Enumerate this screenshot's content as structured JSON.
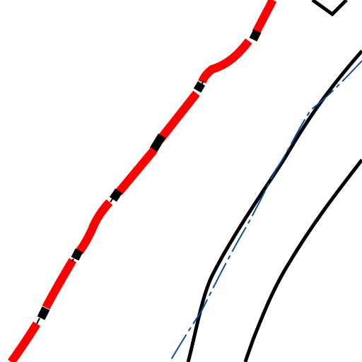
{
  "map": {
    "background": "#ffffff",
    "features": [
      {
        "id": "route-segment-1",
        "kind": "route",
        "color": "#ff0000",
        "style": "thick-red"
      },
      {
        "id": "route-segment-2",
        "kind": "route",
        "color": "#ff0000",
        "style": "thick-red"
      },
      {
        "id": "route-segment-3",
        "kind": "route",
        "color": "#ff0000",
        "style": "thick-red"
      },
      {
        "id": "route-segment-4",
        "kind": "route",
        "color": "#ff0000",
        "style": "thick-red"
      },
      {
        "id": "route-segment-5",
        "kind": "route",
        "color": "#ff0000",
        "style": "thick-red"
      },
      {
        "id": "route-segment-6",
        "kind": "route",
        "color": "#ff0000",
        "style": "thick-red"
      },
      {
        "id": "route-segment-7",
        "kind": "route",
        "color": "#ff0000",
        "style": "thick-red"
      },
      {
        "id": "route-segment-8",
        "kind": "route",
        "color": "#ff0000",
        "style": "thick-red"
      },
      {
        "id": "road-edge-left",
        "kind": "road-edge",
        "color": "#000000",
        "style": "solid"
      },
      {
        "id": "road-edge-right",
        "kind": "road-edge",
        "color": "#000000",
        "style": "solid"
      },
      {
        "id": "blue-line",
        "kind": "waterway-or-path",
        "color": "#0b4fa0",
        "style": "dash-dot"
      },
      {
        "id": "top-corner-mark",
        "kind": "boundary",
        "color": "#000000",
        "style": "solid"
      }
    ],
    "colors": {
      "route": "#ff0000",
      "route_joint": "#000000",
      "road_edge": "#000000",
      "blue_line": "#0b4fa0"
    }
  }
}
